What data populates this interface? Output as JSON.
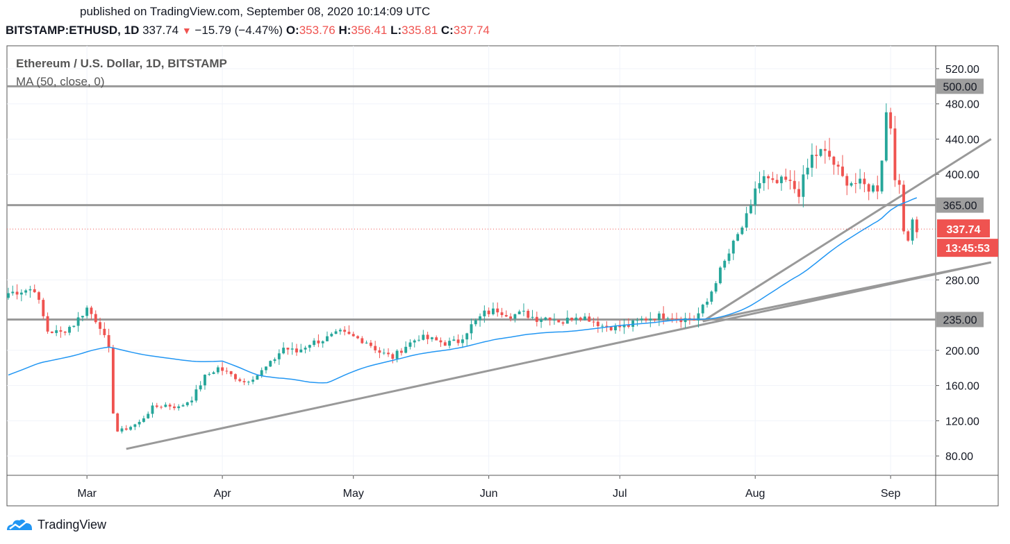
{
  "published_line": "published on TradingView.com, September 08, 2020 10:14:09 UTC",
  "header": {
    "symbol": "BITSTAMP:ETHUSD, 1D",
    "last": "337.74",
    "change": "−15.79 (−4.47%)",
    "o_label": "O:",
    "o": "353.76",
    "h_label": "H:",
    "h": "356.41",
    "l_label": "L:",
    "l": "335.81",
    "c_label": "C:",
    "c": "337.74"
  },
  "brand": "TradingView",
  "colors": {
    "up": "#26a69a",
    "down": "#ef5350",
    "ma": "#2196f3",
    "trend": "#999999",
    "level_tag": "#9e9e9e"
  },
  "chart_data": {
    "type": "candlestick",
    "title": "Ethereum / U.S. Dollar, 1D, BITSTAMP",
    "indicator": "MA (50, close, 0)",
    "ylim": [
      58,
      546
    ],
    "y_ticks": [
      "520.00",
      "480.00",
      "440.00",
      "400.00",
      "280.00",
      "200.00",
      "160.00",
      "120.00",
      "80.00"
    ],
    "x_ticks": [
      {
        "label": "Mar",
        "day": 18
      },
      {
        "label": "Apr",
        "day": 49
      },
      {
        "label": "May",
        "day": 79
      },
      {
        "label": "Jun",
        "day": 110
      },
      {
        "label": "Jul",
        "day": 140
      },
      {
        "label": "Aug",
        "day": 171
      },
      {
        "label": "Sep",
        "day": 202
      }
    ],
    "start_date": "2020-02-12",
    "levels": [
      {
        "value": 500,
        "label": "500.00"
      },
      {
        "value": 365,
        "label": "365.00"
      },
      {
        "value": 235,
        "label": "235.00"
      }
    ],
    "trendlines": [
      {
        "x1": 27,
        "y1": 88,
        "x2": 225,
        "y2": 300
      },
      {
        "x1": 159,
        "y1": 233,
        "x2": 225,
        "y2": 440
      },
      {
        "x1": 159,
        "y1": 233,
        "x2": 225,
        "y2": 300
      }
    ],
    "last_price": {
      "value": 337.74,
      "label": "337.74",
      "countdown": "13:45:53"
    },
    "ohlc_anchors": [
      [
        0,
        265
      ],
      [
        3,
        268
      ],
      [
        6,
        270
      ],
      [
        9,
        222
      ],
      [
        12,
        220
      ],
      [
        15,
        230
      ],
      [
        18,
        248
      ],
      [
        21,
        228
      ],
      [
        23,
        200
      ],
      [
        24,
        130
      ],
      [
        25,
        108
      ],
      [
        27,
        111
      ],
      [
        30,
        118
      ],
      [
        33,
        135
      ],
      [
        36,
        138
      ],
      [
        39,
        135
      ],
      [
        42,
        145
      ],
      [
        45,
        170
      ],
      [
        48,
        180
      ],
      [
        51,
        172
      ],
      [
        54,
        164
      ],
      [
        57,
        172
      ],
      [
        60,
        185
      ],
      [
        63,
        203
      ],
      [
        66,
        198
      ],
      [
        69,
        208
      ],
      [
        72,
        212
      ],
      [
        76,
        220
      ],
      [
        79,
        215
      ],
      [
        82,
        210
      ],
      [
        85,
        198
      ],
      [
        88,
        192
      ],
      [
        91,
        205
      ],
      [
        94,
        215
      ],
      [
        97,
        212
      ],
      [
        100,
        208
      ],
      [
        103,
        210
      ],
      [
        106,
        228
      ],
      [
        109,
        242
      ],
      [
        112,
        246
      ],
      [
        115,
        240
      ],
      [
        118,
        242
      ],
      [
        121,
        236
      ],
      [
        124,
        238
      ],
      [
        127,
        232
      ],
      [
        130,
        240
      ],
      [
        133,
        236
      ],
      [
        136,
        228
      ],
      [
        139,
        226
      ],
      [
        142,
        228
      ],
      [
        145,
        235
      ],
      [
        148,
        238
      ],
      [
        151,
        240
      ],
      [
        154,
        236
      ],
      [
        157,
        235
      ],
      [
        160,
        255
      ],
      [
        162,
        280
      ],
      [
        165,
        310
      ],
      [
        168,
        340
      ],
      [
        170,
        360
      ],
      [
        171,
        385
      ],
      [
        173,
        395
      ],
      [
        175,
        388
      ],
      [
        178,
        392
      ],
      [
        181,
        380
      ],
      [
        184,
        420
      ],
      [
        186,
        425
      ],
      [
        188,
        420
      ],
      [
        191,
        395
      ],
      [
        194,
        390
      ],
      [
        197,
        385
      ],
      [
        199,
        385
      ],
      [
        200,
        420
      ],
      [
        201,
        470
      ],
      [
        202,
        455
      ],
      [
        203,
        400
      ],
      [
        204,
        382
      ],
      [
        205,
        335
      ],
      [
        206,
        330
      ],
      [
        207,
        350
      ],
      [
        208,
        338
      ]
    ]
  }
}
